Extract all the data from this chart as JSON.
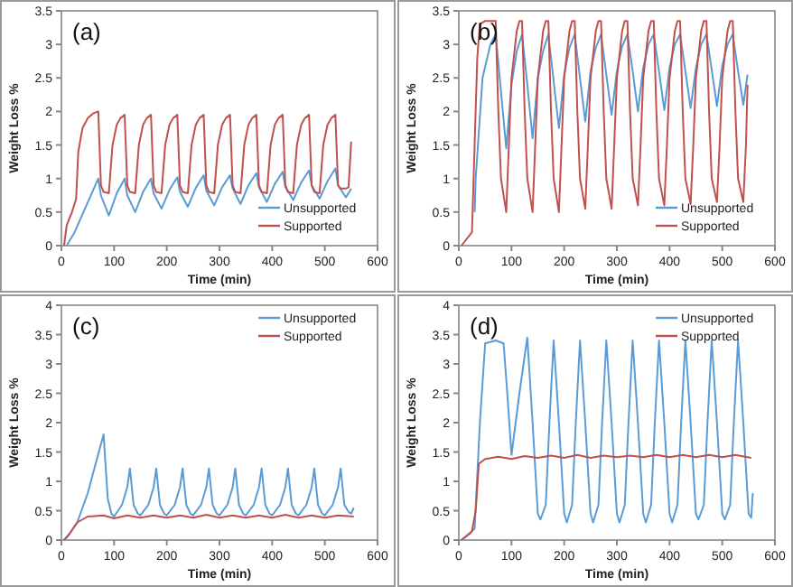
{
  "chart_data": [
    {
      "type": "line",
      "title": "(a)",
      "xlabel": "Time (min)",
      "ylabel": "Weight Loss %",
      "xlim": [
        0,
        600
      ],
      "xticks": [
        0,
        100,
        200,
        300,
        400,
        500,
        600
      ],
      "ylim": [
        0,
        3.5
      ],
      "yticks": [
        0,
        0.5,
        1,
        1.5,
        2,
        2.5,
        3,
        3.5
      ],
      "legend": "bottom right",
      "series": [
        {
          "name": "Unsupported",
          "color": "#5b9bd5",
          "x": [
            10,
            25,
            70,
            75,
            90,
            105,
            120,
            125,
            140,
            155,
            170,
            175,
            190,
            205,
            220,
            225,
            240,
            255,
            270,
            275,
            290,
            305,
            320,
            325,
            340,
            355,
            370,
            375,
            390,
            405,
            420,
            425,
            440,
            455,
            470,
            475,
            490,
            505,
            520,
            525,
            540,
            550
          ],
          "values": [
            0,
            0.2,
            1.0,
            0.75,
            0.45,
            0.78,
            1.0,
            0.75,
            0.5,
            0.8,
            1.0,
            0.78,
            0.55,
            0.83,
            1.02,
            0.8,
            0.58,
            0.86,
            1.05,
            0.82,
            0.6,
            0.87,
            1.05,
            0.85,
            0.62,
            0.9,
            1.08,
            0.87,
            0.65,
            0.92,
            1.1,
            0.88,
            0.68,
            0.94,
            1.12,
            0.9,
            0.7,
            0.96,
            1.15,
            0.9,
            0.72,
            0.85
          ]
        },
        {
          "name": "Supported",
          "color": "#c0504d",
          "x": [
            5,
            10,
            20,
            28,
            32,
            40,
            50,
            60,
            70,
            75,
            80,
            90,
            97,
            105,
            112,
            120,
            125,
            130,
            140,
            147,
            155,
            162,
            170,
            175,
            180,
            190,
            197,
            205,
            212,
            220,
            225,
            230,
            240,
            247,
            255,
            262,
            270,
            275,
            280,
            290,
            297,
            305,
            312,
            320,
            325,
            330,
            340,
            347,
            355,
            362,
            370,
            375,
            380,
            390,
            397,
            405,
            412,
            420,
            425,
            430,
            440,
            447,
            455,
            462,
            470,
            475,
            480,
            490,
            497,
            505,
            512,
            520,
            525,
            530,
            540,
            545,
            550
          ],
          "values": [
            0,
            0.3,
            0.5,
            0.7,
            1.4,
            1.75,
            1.9,
            1.97,
            2.0,
            0.9,
            0.8,
            0.78,
            1.5,
            1.8,
            1.9,
            1.95,
            0.9,
            0.8,
            0.78,
            1.5,
            1.8,
            1.9,
            1.95,
            0.9,
            0.8,
            0.78,
            1.5,
            1.8,
            1.9,
            1.95,
            0.9,
            0.8,
            0.78,
            1.5,
            1.8,
            1.9,
            1.95,
            0.9,
            0.8,
            0.78,
            1.5,
            1.8,
            1.9,
            1.95,
            0.9,
            0.8,
            0.78,
            1.5,
            1.8,
            1.9,
            1.95,
            0.9,
            0.8,
            0.78,
            1.5,
            1.8,
            1.9,
            1.95,
            0.9,
            0.8,
            0.78,
            1.5,
            1.8,
            1.9,
            1.95,
            0.9,
            0.8,
            0.78,
            1.5,
            1.8,
            1.9,
            1.95,
            0.9,
            0.85,
            0.85,
            0.87,
            1.55
          ]
        }
      ]
    },
    {
      "type": "line",
      "title": "(b)",
      "xlabel": "Time (min)",
      "ylabel": "Weight Loss %",
      "xlim": [
        0,
        600
      ],
      "xticks": [
        0,
        100,
        200,
        300,
        400,
        500,
        600
      ],
      "ylim": [
        0,
        3.5
      ],
      "yticks": [
        0,
        0.5,
        1,
        1.5,
        2,
        2.5,
        3,
        3.5
      ],
      "legend": "bottom right",
      "series": [
        {
          "name": "Unsupported",
          "color": "#5b9bd5",
          "x": [
            30,
            32,
            45,
            60,
            70,
            80,
            90,
            100,
            110,
            120,
            130,
            140,
            150,
            160,
            170,
            180,
            190,
            200,
            210,
            220,
            230,
            240,
            250,
            260,
            270,
            280,
            290,
            300,
            310,
            320,
            330,
            340,
            350,
            360,
            370,
            380,
            390,
            400,
            410,
            420,
            430,
            440,
            450,
            460,
            470,
            480,
            490,
            500,
            510,
            520,
            530,
            540,
            548
          ],
          "values": [
            0.5,
            1.0,
            2.5,
            3.0,
            3.15,
            2.3,
            1.45,
            2.4,
            2.9,
            3.15,
            2.4,
            1.6,
            2.5,
            2.9,
            3.15,
            2.45,
            1.75,
            2.55,
            2.95,
            3.15,
            2.5,
            1.85,
            2.6,
            2.95,
            3.15,
            2.55,
            1.95,
            2.6,
            2.97,
            3.15,
            2.6,
            2.0,
            2.65,
            3.0,
            3.15,
            2.6,
            2.02,
            2.65,
            3.0,
            3.15,
            2.6,
            2.05,
            2.65,
            3.0,
            3.15,
            2.62,
            2.08,
            2.68,
            3.0,
            3.15,
            2.6,
            2.1,
            2.55
          ]
        },
        {
          "name": "Supported",
          "color": "#c0504d",
          "x": [
            5,
            25,
            30,
            35,
            40,
            50,
            70,
            75,
            80,
            90,
            95,
            100,
            110,
            115,
            120,
            125,
            130,
            140,
            145,
            150,
            160,
            165,
            170,
            175,
            180,
            190,
            195,
            200,
            210,
            215,
            220,
            225,
            230,
            240,
            245,
            250,
            260,
            265,
            270,
            275,
            280,
            290,
            295,
            300,
            310,
            315,
            320,
            325,
            330,
            340,
            345,
            350,
            360,
            365,
            370,
            375,
            380,
            390,
            395,
            400,
            410,
            415,
            420,
            425,
            430,
            440,
            445,
            450,
            460,
            465,
            470,
            475,
            480,
            490,
            495,
            500,
            510,
            515,
            520,
            525,
            530,
            540,
            545,
            548
          ],
          "values": [
            0,
            0.2,
            1.5,
            2.8,
            3.3,
            3.35,
            3.35,
            2.0,
            1.0,
            0.5,
            1.5,
            2.5,
            3.2,
            3.35,
            3.35,
            2.0,
            1.0,
            0.5,
            1.5,
            2.5,
            3.2,
            3.35,
            3.35,
            2.0,
            1.0,
            0.5,
            1.5,
            2.5,
            3.2,
            3.35,
            3.35,
            2.0,
            1.0,
            0.55,
            1.5,
            2.5,
            3.2,
            3.35,
            3.35,
            2.0,
            1.0,
            0.55,
            1.5,
            2.5,
            3.2,
            3.35,
            3.35,
            2.0,
            1.0,
            0.6,
            1.5,
            2.5,
            3.2,
            3.35,
            3.35,
            2.0,
            1.0,
            0.6,
            1.5,
            2.5,
            3.2,
            3.35,
            3.35,
            2.0,
            1.0,
            0.62,
            1.5,
            2.5,
            3.2,
            3.35,
            3.35,
            2.0,
            1.0,
            0.65,
            1.5,
            2.5,
            3.2,
            3.35,
            3.35,
            2.0,
            1.0,
            0.65,
            1.5,
            2.4
          ]
        }
      ]
    },
    {
      "type": "line",
      "title": "(c)",
      "xlabel": "Time (min)",
      "ylabel": "Weight Loss %",
      "xlim": [
        0,
        600
      ],
      "xticks": [
        0,
        100,
        200,
        300,
        400,
        500,
        600
      ],
      "ylim": [
        0,
        4
      ],
      "yticks": [
        0,
        0.5,
        1,
        1.5,
        2,
        2.5,
        3,
        3.5,
        4
      ],
      "legend": "top right",
      "series": [
        {
          "name": "Unsupported",
          "color": "#5b9bd5",
          "x": [
            5,
            15,
            30,
            50,
            65,
            80,
            88,
            95,
            100,
            115,
            125,
            130,
            137,
            145,
            150,
            165,
            175,
            180,
            187,
            195,
            200,
            215,
            225,
            230,
            237,
            245,
            250,
            265,
            275,
            280,
            287,
            295,
            300,
            315,
            325,
            330,
            337,
            345,
            350,
            365,
            375,
            380,
            387,
            395,
            400,
            415,
            425,
            430,
            437,
            445,
            450,
            465,
            475,
            480,
            487,
            495,
            500,
            515,
            525,
            530,
            537,
            545,
            550,
            555
          ],
          "values": [
            0,
            0.1,
            0.3,
            0.8,
            1.3,
            1.8,
            0.7,
            0.45,
            0.4,
            0.6,
            0.9,
            1.22,
            0.6,
            0.45,
            0.42,
            0.6,
            0.9,
            1.22,
            0.6,
            0.45,
            0.42,
            0.6,
            0.9,
            1.22,
            0.6,
            0.45,
            0.42,
            0.6,
            0.9,
            1.22,
            0.6,
            0.45,
            0.42,
            0.6,
            0.9,
            1.22,
            0.6,
            0.45,
            0.42,
            0.6,
            0.9,
            1.22,
            0.6,
            0.45,
            0.42,
            0.6,
            0.9,
            1.22,
            0.6,
            0.45,
            0.42,
            0.6,
            0.9,
            1.22,
            0.6,
            0.45,
            0.42,
            0.6,
            0.9,
            1.22,
            0.6,
            0.48,
            0.45,
            0.55
          ]
        },
        {
          "name": "Supported",
          "color": "#c0504d",
          "x": [
            5,
            15,
            30,
            50,
            80,
            100,
            125,
            150,
            175,
            200,
            225,
            250,
            275,
            300,
            325,
            350,
            375,
            400,
            425,
            450,
            475,
            500,
            525,
            555
          ],
          "values": [
            0,
            0.1,
            0.3,
            0.4,
            0.42,
            0.37,
            0.42,
            0.38,
            0.42,
            0.38,
            0.42,
            0.38,
            0.43,
            0.38,
            0.42,
            0.38,
            0.42,
            0.38,
            0.43,
            0.38,
            0.42,
            0.38,
            0.42,
            0.4
          ]
        }
      ]
    },
    {
      "type": "line",
      "title": "(d)",
      "xlabel": "Time (min)",
      "ylabel": "Weight Loss %",
      "xlim": [
        0,
        600
      ],
      "xticks": [
        0,
        100,
        200,
        300,
        400,
        500,
        600
      ],
      "ylim": [
        0,
        4
      ],
      "yticks": [
        0,
        0.5,
        1,
        1.5,
        2,
        2.5,
        3,
        3.5,
        4
      ],
      "legend": "top right",
      "series": [
        {
          "name": "Unsupported",
          "color": "#5b9bd5",
          "x": [
            5,
            20,
            30,
            40,
            50,
            70,
            85,
            92,
            100,
            115,
            130,
            140,
            150,
            155,
            165,
            172,
            180,
            190,
            200,
            205,
            215,
            222,
            230,
            240,
            250,
            255,
            265,
            272,
            280,
            290,
            300,
            305,
            315,
            322,
            330,
            340,
            350,
            355,
            365,
            372,
            380,
            390,
            400,
            405,
            415,
            422,
            430,
            440,
            450,
            455,
            465,
            472,
            480,
            490,
            500,
            505,
            515,
            522,
            530,
            540,
            550,
            555,
            558
          ],
          "values": [
            0,
            0.1,
            0.2,
            2.0,
            3.35,
            3.4,
            3.35,
            2.5,
            1.45,
            2.5,
            3.45,
            2.0,
            0.45,
            0.35,
            0.6,
            2.0,
            3.4,
            2.0,
            0.45,
            0.3,
            0.6,
            2.0,
            3.4,
            2.0,
            0.45,
            0.3,
            0.6,
            2.0,
            3.4,
            2.0,
            0.45,
            0.3,
            0.6,
            2.0,
            3.4,
            2.0,
            0.45,
            0.3,
            0.6,
            2.0,
            3.4,
            2.0,
            0.45,
            0.3,
            0.6,
            2.0,
            3.4,
            2.0,
            0.45,
            0.35,
            0.6,
            2.0,
            3.4,
            2.0,
            0.45,
            0.35,
            0.6,
            2.0,
            3.4,
            2.0,
            0.45,
            0.38,
            0.8
          ]
        },
        {
          "name": "Supported",
          "color": "#c0504d",
          "x": [
            5,
            25,
            32,
            38,
            50,
            75,
            100,
            125,
            150,
            175,
            200,
            225,
            250,
            275,
            300,
            325,
            350,
            375,
            400,
            425,
            450,
            475,
            500,
            525,
            555
          ],
          "values": [
            0,
            0.15,
            0.5,
            1.3,
            1.38,
            1.42,
            1.38,
            1.43,
            1.4,
            1.44,
            1.4,
            1.45,
            1.4,
            1.44,
            1.41,
            1.44,
            1.41,
            1.45,
            1.41,
            1.45,
            1.41,
            1.45,
            1.41,
            1.45,
            1.4
          ]
        }
      ]
    }
  ]
}
